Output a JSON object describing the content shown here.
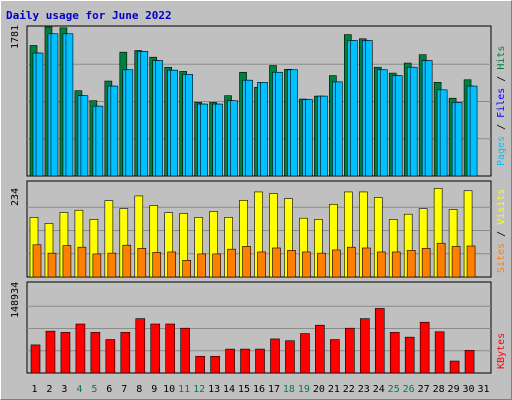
{
  "chart_data": {
    "type": "bar",
    "title": "Daily usage for June 2022",
    "categories": [
      "1",
      "2",
      "3",
      "4",
      "5",
      "6",
      "7",
      "8",
      "9",
      "10",
      "11",
      "12",
      "13",
      "14",
      "15",
      "16",
      "17",
      "18",
      "19",
      "20",
      "21",
      "22",
      "23",
      "24",
      "25",
      "26",
      "27",
      "28",
      "29",
      "30",
      "31"
    ],
    "weekend_days": [
      "4",
      "5",
      "11",
      "12",
      "18",
      "19",
      "25",
      "26"
    ],
    "colors": {
      "background": "#c0c0c0",
      "hits": "#008040",
      "files": "#00c0ff",
      "pages": "#00c0ff",
      "visits": "#ffff00",
      "sites": "#ff8000",
      "kbytes": "#ff0000",
      "title": "#0000cc",
      "weekday_label": "#000000",
      "weekend_label": "#008040"
    },
    "panels": [
      {
        "id": "hits-files-pages",
        "ymax_label": "1781",
        "ymax": 1781,
        "right_label": [
          {
            "text": "Pages",
            "color": "#00c0ff"
          },
          {
            "text": " / ",
            "color": "#000000"
          },
          {
            "text": "Files",
            "color": "#0000ff"
          },
          {
            "text": " / ",
            "color": "#000000"
          },
          {
            "text": "Hits",
            "color": "#008040"
          }
        ],
        "series": [
          {
            "name": "Hits",
            "color": "#008040",
            "values": [
              1560,
              1781,
              1771,
              1020,
              900,
              1135,
              1480,
              1500,
              1420,
              1300,
              1250,
              880,
              880,
              960,
              1240,
              1060,
              1320,
              1275,
              920,
              955,
              1200,
              1690,
              1640,
              1300,
              1230,
              1350,
              1450,
              1120,
              930,
              1150,
              0
            ]
          },
          {
            "name": "Files",
            "color": "#00c0ff",
            "values": [
              1470,
              1700,
              1700,
              960,
              835,
              1075,
              1270,
              1490,
              1380,
              1265,
              1215,
              860,
              860,
              900,
              1145,
              1120,
              1240,
              1270,
              915,
              955,
              1125,
              1620,
              1620,
              1270,
              1200,
              1300,
              1380,
              1030,
              880,
              1075,
              0
            ]
          },
          {
            "name": "Pages",
            "color": "#00c0ff",
            "values": [
              1470,
              1700,
              1700,
              960,
              835,
              1075,
              1270,
              1490,
              1380,
              1265,
              1215,
              860,
              860,
              900,
              1145,
              1120,
              1240,
              1270,
              915,
              955,
              1125,
              1620,
              1620,
              1270,
              1200,
              1300,
              1380,
              1030,
              880,
              1075,
              0
            ]
          }
        ]
      },
      {
        "id": "visits-sites",
        "ymax_label": "234",
        "ymax": 234,
        "right_label": [
          {
            "text": "Sites",
            "color": "#ff8000"
          },
          {
            "text": " / ",
            "color": "#000000"
          },
          {
            "text": "Visits",
            "color": "#ffff00"
          }
        ],
        "series": [
          {
            "name": "Visits",
            "color": "#ffff00",
            "values": [
              150,
              135,
              162,
              168,
              145,
              192,
              172,
              204,
              180,
              162,
              160,
              150,
              165,
              150,
              193,
              214,
              210,
              197,
              148,
              145,
              183,
              214,
              214,
              200,
              145,
              158,
              172,
              223,
              170,
              217,
              0
            ]
          },
          {
            "name": "Sites",
            "color": "#ff8000",
            "values": [
              81,
              60,
              79,
              75,
              58,
              60,
              80,
              72,
              62,
              63,
              42,
              58,
              58,
              70,
              77,
              63,
              73,
              67,
              63,
              60,
              68,
              75,
              73,
              63,
              63,
              67,
              72,
              85,
              77,
              78,
              0
            ]
          }
        ]
      },
      {
        "id": "kbytes",
        "ymax_label": "148934",
        "ymax": 148934,
        "right_label": [
          {
            "text": "KBytes",
            "color": "#ff0000"
          }
        ],
        "series": [
          {
            "name": "KBytes",
            "color": "#ff0000",
            "values": [
              47000,
              70000,
              68000,
              82000,
              68000,
              56000,
              68000,
              91000,
              82000,
              82000,
              75000,
              28000,
              28000,
              40000,
              40000,
              40000,
              57000,
              54000,
              66000,
              80000,
              56000,
              75000,
              91000,
              108000,
              68000,
              60000,
              85000,
              69000,
              20000,
              38000,
              0
            ]
          }
        ]
      }
    ]
  }
}
